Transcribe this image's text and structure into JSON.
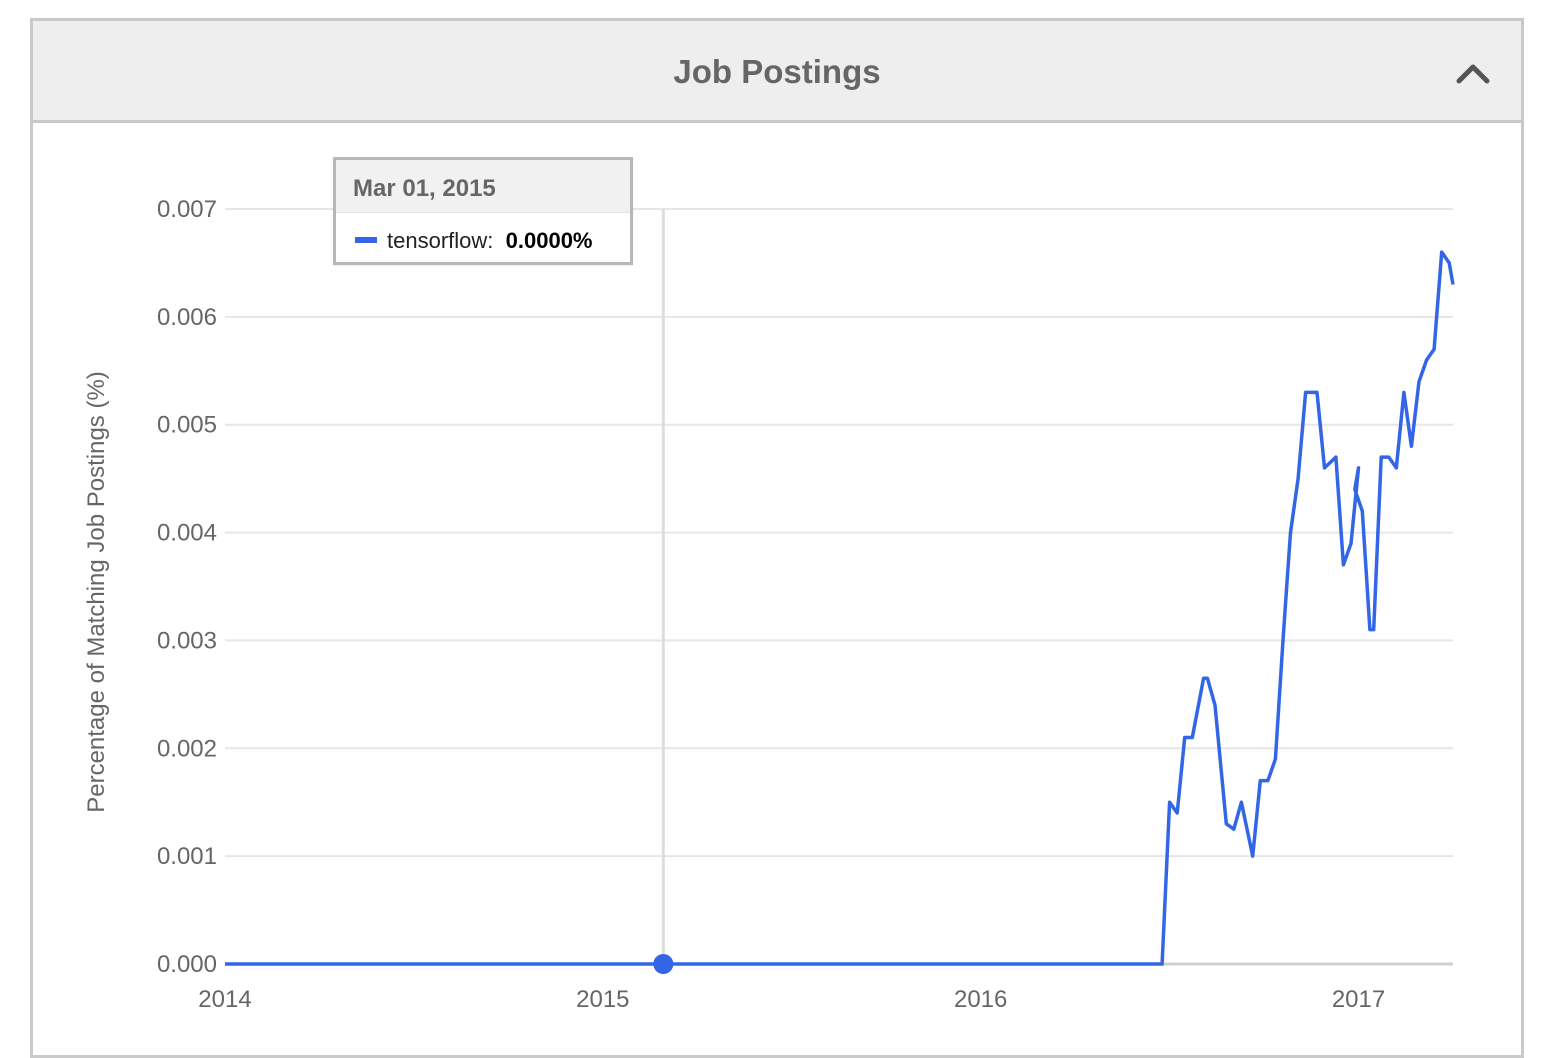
{
  "panel": {
    "title": "Job Postings",
    "collapse_icon": "chevron-up-icon"
  },
  "tooltip": {
    "date": "Mar 01, 2015",
    "series_label": "tensorflow",
    "separator": ":",
    "value": "0.0000%"
  },
  "colors": {
    "series": "#3366e6",
    "grid": "#e6e6e6",
    "text": "#666666",
    "header_bg": "#eeeeee"
  },
  "chart_data": {
    "type": "line",
    "title": "",
    "xlabel": "",
    "ylabel": "Percentage of Matching Job Postings (%)",
    "xlim": [
      2014.0,
      2017.25
    ],
    "ylim": [
      0,
      0.007
    ],
    "x_ticks": [
      "2014",
      "2015",
      "2016",
      "2017"
    ],
    "y_ticks": [
      "0.000",
      "0.001",
      "0.002",
      "0.003",
      "0.004",
      "0.005",
      "0.006",
      "0.007"
    ],
    "grid": true,
    "hover_x": 2015.16,
    "series": [
      {
        "name": "tensorflow",
        "x": [
          2014.0,
          2016.48,
          2016.5,
          2016.52,
          2016.54,
          2016.56,
          2016.59,
          2016.6,
          2016.62,
          2016.65,
          2016.67,
          2016.69,
          2016.72,
          2016.74,
          2016.76,
          2016.78,
          2016.8,
          2016.81,
          2016.82,
          2016.84,
          2016.86,
          2016.87,
          2016.89,
          2016.91,
          2016.94,
          2016.96,
          2016.98,
          2017.0,
          2016.99,
          2017.01,
          2017.03,
          2017.04,
          2017.06,
          2017.08,
          2017.1,
          2017.12,
          2017.14,
          2017.16,
          2017.18,
          2017.2,
          2017.22,
          2017.24,
          2017.25
        ],
        "y": [
          0.0,
          0.0,
          0.0015,
          0.0014,
          0.0021,
          0.0021,
          0.00265,
          0.00265,
          0.0024,
          0.0013,
          0.00125,
          0.0015,
          0.001,
          0.0017,
          0.0017,
          0.0019,
          0.003,
          0.0035,
          0.004,
          0.0045,
          0.0053,
          0.0053,
          0.0053,
          0.0046,
          0.0047,
          0.0037,
          0.0039,
          0.0046,
          0.0044,
          0.0042,
          0.0031,
          0.0031,
          0.0047,
          0.0047,
          0.0046,
          0.0053,
          0.0048,
          0.0054,
          0.0056,
          0.0057,
          0.0066,
          0.0065,
          0.0063
        ]
      }
    ]
  }
}
